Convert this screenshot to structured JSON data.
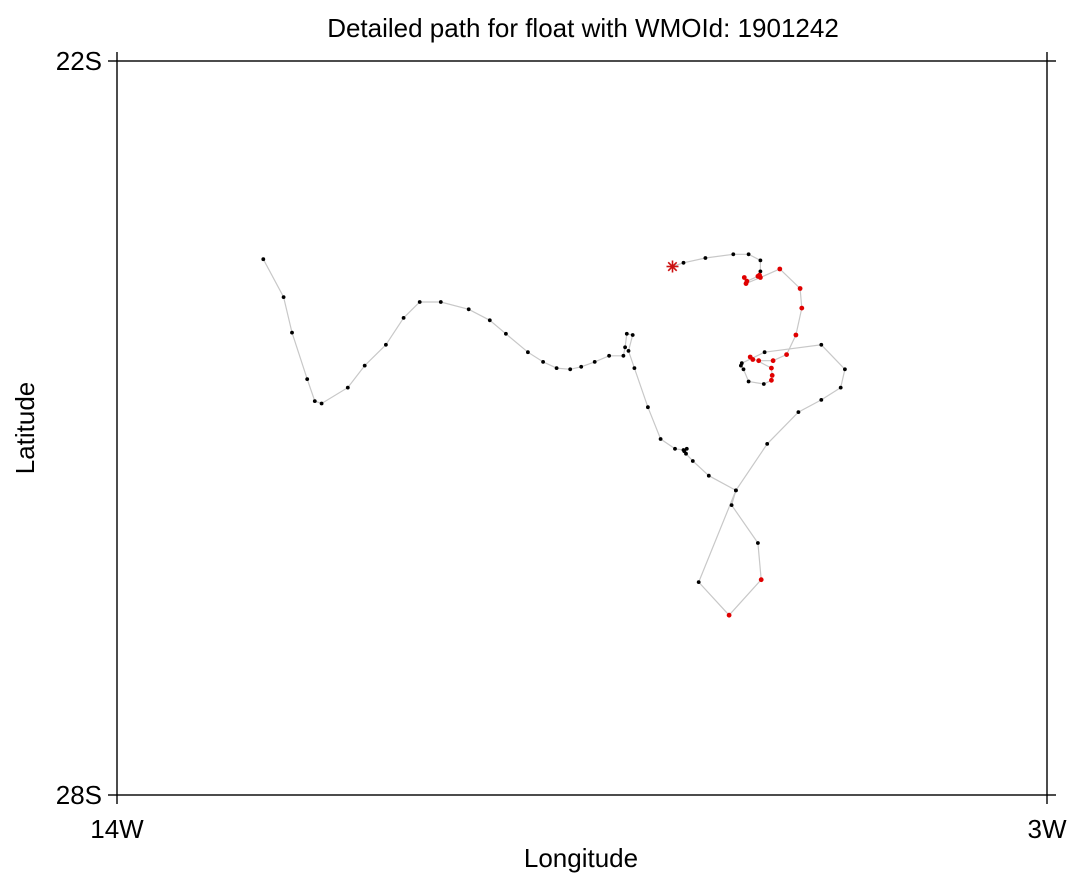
{
  "chart_data": {
    "type": "scatter",
    "title": "Detailed path for float with WMOId: 1901242",
    "xlabel": "Longitude",
    "ylabel": "Latitude",
    "xlim": [
      -14,
      -3
    ],
    "ylim": [
      -28,
      -22
    ],
    "x_ticks": [
      {
        "value": -14,
        "label": "14W"
      },
      {
        "value": -3,
        "label": "3W"
      }
    ],
    "y_ticks": [
      {
        "value": -22,
        "label": "22S"
      },
      {
        "value": -28,
        "label": "28S"
      }
    ],
    "grid": false,
    "legend": "none",
    "colors": {
      "path": "#c8c8c8",
      "point": "#000000",
      "highlight": "#e00000",
      "start_marker": "#cc1111"
    },
    "start_marker": {
      "lon": -7.43,
      "lat": -23.68
    },
    "series": [
      {
        "points": [
          {
            "lon": -7.43,
            "lat": -23.68,
            "flag": "normal"
          },
          {
            "lon": -7.3,
            "lat": -23.65,
            "flag": "normal"
          },
          {
            "lon": -7.04,
            "lat": -23.61,
            "flag": "normal"
          },
          {
            "lon": -6.71,
            "lat": -23.58,
            "flag": "normal"
          },
          {
            "lon": -6.53,
            "lat": -23.58,
            "flag": "normal"
          },
          {
            "lon": -6.39,
            "lat": -23.63,
            "flag": "normal"
          },
          {
            "lon": -6.39,
            "lat": -23.72,
            "flag": "normal"
          },
          {
            "lon": -6.4,
            "lat": -23.75,
            "flag": "highlight"
          },
          {
            "lon": -6.42,
            "lat": -23.76,
            "flag": "highlight"
          },
          {
            "lon": -6.55,
            "lat": -23.8,
            "flag": "highlight"
          },
          {
            "lon": -6.58,
            "lat": -23.77,
            "flag": "highlight"
          },
          {
            "lon": -6.56,
            "lat": -23.82,
            "flag": "highlight"
          },
          {
            "lon": -6.39,
            "lat": -23.77,
            "flag": "highlight"
          },
          {
            "lon": -6.16,
            "lat": -23.7,
            "flag": "highlight"
          },
          {
            "lon": -5.92,
            "lat": -23.86,
            "flag": "highlight"
          },
          {
            "lon": -5.9,
            "lat": -24.02,
            "flag": "highlight"
          },
          {
            "lon": -5.97,
            "lat": -24.24,
            "flag": "highlight"
          },
          {
            "lon": -6.08,
            "lat": -24.4,
            "flag": "highlight"
          },
          {
            "lon": -6.24,
            "lat": -24.45,
            "flag": "highlight"
          },
          {
            "lon": -6.41,
            "lat": -24.45,
            "flag": "highlight"
          },
          {
            "lon": -6.48,
            "lat": -24.44,
            "flag": "highlight"
          },
          {
            "lon": -6.51,
            "lat": -24.42,
            "flag": "highlight"
          },
          {
            "lon": -6.26,
            "lat": -24.51,
            "flag": "highlight"
          },
          {
            "lon": -6.25,
            "lat": -24.57,
            "flag": "highlight"
          },
          {
            "lon": -6.26,
            "lat": -24.61,
            "flag": "highlight"
          },
          {
            "lon": -6.35,
            "lat": -24.64,
            "flag": "normal"
          },
          {
            "lon": -6.53,
            "lat": -24.62,
            "flag": "normal"
          },
          {
            "lon": -6.59,
            "lat": -24.52,
            "flag": "normal"
          },
          {
            "lon": -6.62,
            "lat": -24.49,
            "flag": "normal"
          },
          {
            "lon": -6.61,
            "lat": -24.47,
            "flag": "normal"
          },
          {
            "lon": -6.34,
            "lat": -24.38,
            "flag": "normal"
          },
          {
            "lon": -5.67,
            "lat": -24.32,
            "flag": "normal"
          },
          {
            "lon": -5.39,
            "lat": -24.52,
            "flag": "normal"
          },
          {
            "lon": -5.44,
            "lat": -24.67,
            "flag": "normal"
          },
          {
            "lon": -5.67,
            "lat": -24.77,
            "flag": "normal"
          },
          {
            "lon": -5.94,
            "lat": -24.87,
            "flag": "normal"
          },
          {
            "lon": -6.31,
            "lat": -25.13,
            "flag": "normal"
          },
          {
            "lon": -6.68,
            "lat": -25.51,
            "flag": "normal"
          },
          {
            "lon": -6.73,
            "lat": -25.63,
            "flag": "normal"
          },
          {
            "lon": -6.42,
            "lat": -25.94,
            "flag": "normal"
          },
          {
            "lon": -6.38,
            "lat": -26.24,
            "flag": "highlight"
          },
          {
            "lon": -6.76,
            "lat": -26.53,
            "flag": "highlight"
          },
          {
            "lon": -7.12,
            "lat": -26.26,
            "flag": "normal"
          },
          {
            "lon": -6.68,
            "lat": -25.51,
            "flag": "normal"
          },
          {
            "lon": -7.0,
            "lat": -25.39,
            "flag": "normal"
          },
          {
            "lon": -7.19,
            "lat": -25.27,
            "flag": "normal"
          },
          {
            "lon": -7.27,
            "lat": -25.21,
            "flag": "normal"
          },
          {
            "lon": -7.29,
            "lat": -25.19,
            "flag": "normal"
          },
          {
            "lon": -7.26,
            "lat": -25.17,
            "flag": "normal"
          },
          {
            "lon": -7.3,
            "lat": -25.18,
            "flag": "normal"
          },
          {
            "lon": -7.4,
            "lat": -25.17,
            "flag": "normal"
          },
          {
            "lon": -7.57,
            "lat": -25.09,
            "flag": "normal"
          },
          {
            "lon": -7.72,
            "lat": -24.83,
            "flag": "normal"
          },
          {
            "lon": -7.88,
            "lat": -24.51,
            "flag": "normal"
          },
          {
            "lon": -7.95,
            "lat": -24.37,
            "flag": "normal"
          },
          {
            "lon": -7.9,
            "lat": -24.24,
            "flag": "normal"
          },
          {
            "lon": -7.97,
            "lat": -24.23,
            "flag": "normal"
          },
          {
            "lon": -7.99,
            "lat": -24.34,
            "flag": "normal"
          },
          {
            "lon": -8.01,
            "lat": -24.41,
            "flag": "normal"
          },
          {
            "lon": -8.18,
            "lat": -24.41,
            "flag": "normal"
          },
          {
            "lon": -8.35,
            "lat": -24.46,
            "flag": "normal"
          },
          {
            "lon": -8.51,
            "lat": -24.5,
            "flag": "normal"
          },
          {
            "lon": -8.64,
            "lat": -24.52,
            "flag": "normal"
          },
          {
            "lon": -8.8,
            "lat": -24.51,
            "flag": "normal"
          },
          {
            "lon": -8.96,
            "lat": -24.46,
            "flag": "normal"
          },
          {
            "lon": -9.14,
            "lat": -24.38,
            "flag": "normal"
          },
          {
            "lon": -9.4,
            "lat": -24.23,
            "flag": "normal"
          },
          {
            "lon": -9.59,
            "lat": -24.12,
            "flag": "normal"
          },
          {
            "lon": -9.84,
            "lat": -24.03,
            "flag": "normal"
          },
          {
            "lon": -10.17,
            "lat": -23.97,
            "flag": "normal"
          },
          {
            "lon": -10.42,
            "lat": -23.97,
            "flag": "normal"
          },
          {
            "lon": -10.61,
            "lat": -24.1,
            "flag": "normal"
          },
          {
            "lon": -10.82,
            "lat": -24.32,
            "flag": "normal"
          },
          {
            "lon": -11.07,
            "lat": -24.49,
            "flag": "normal"
          },
          {
            "lon": -11.27,
            "lat": -24.67,
            "flag": "normal"
          },
          {
            "lon": -11.58,
            "lat": -24.8,
            "flag": "normal"
          },
          {
            "lon": -11.66,
            "lat": -24.78,
            "flag": "normal"
          },
          {
            "lon": -11.75,
            "lat": -24.6,
            "flag": "normal"
          },
          {
            "lon": -11.93,
            "lat": -24.22,
            "flag": "normal"
          },
          {
            "lon": -12.03,
            "lat": -23.93,
            "flag": "normal"
          },
          {
            "lon": -12.27,
            "lat": -23.62,
            "flag": "normal"
          }
        ]
      }
    ]
  }
}
